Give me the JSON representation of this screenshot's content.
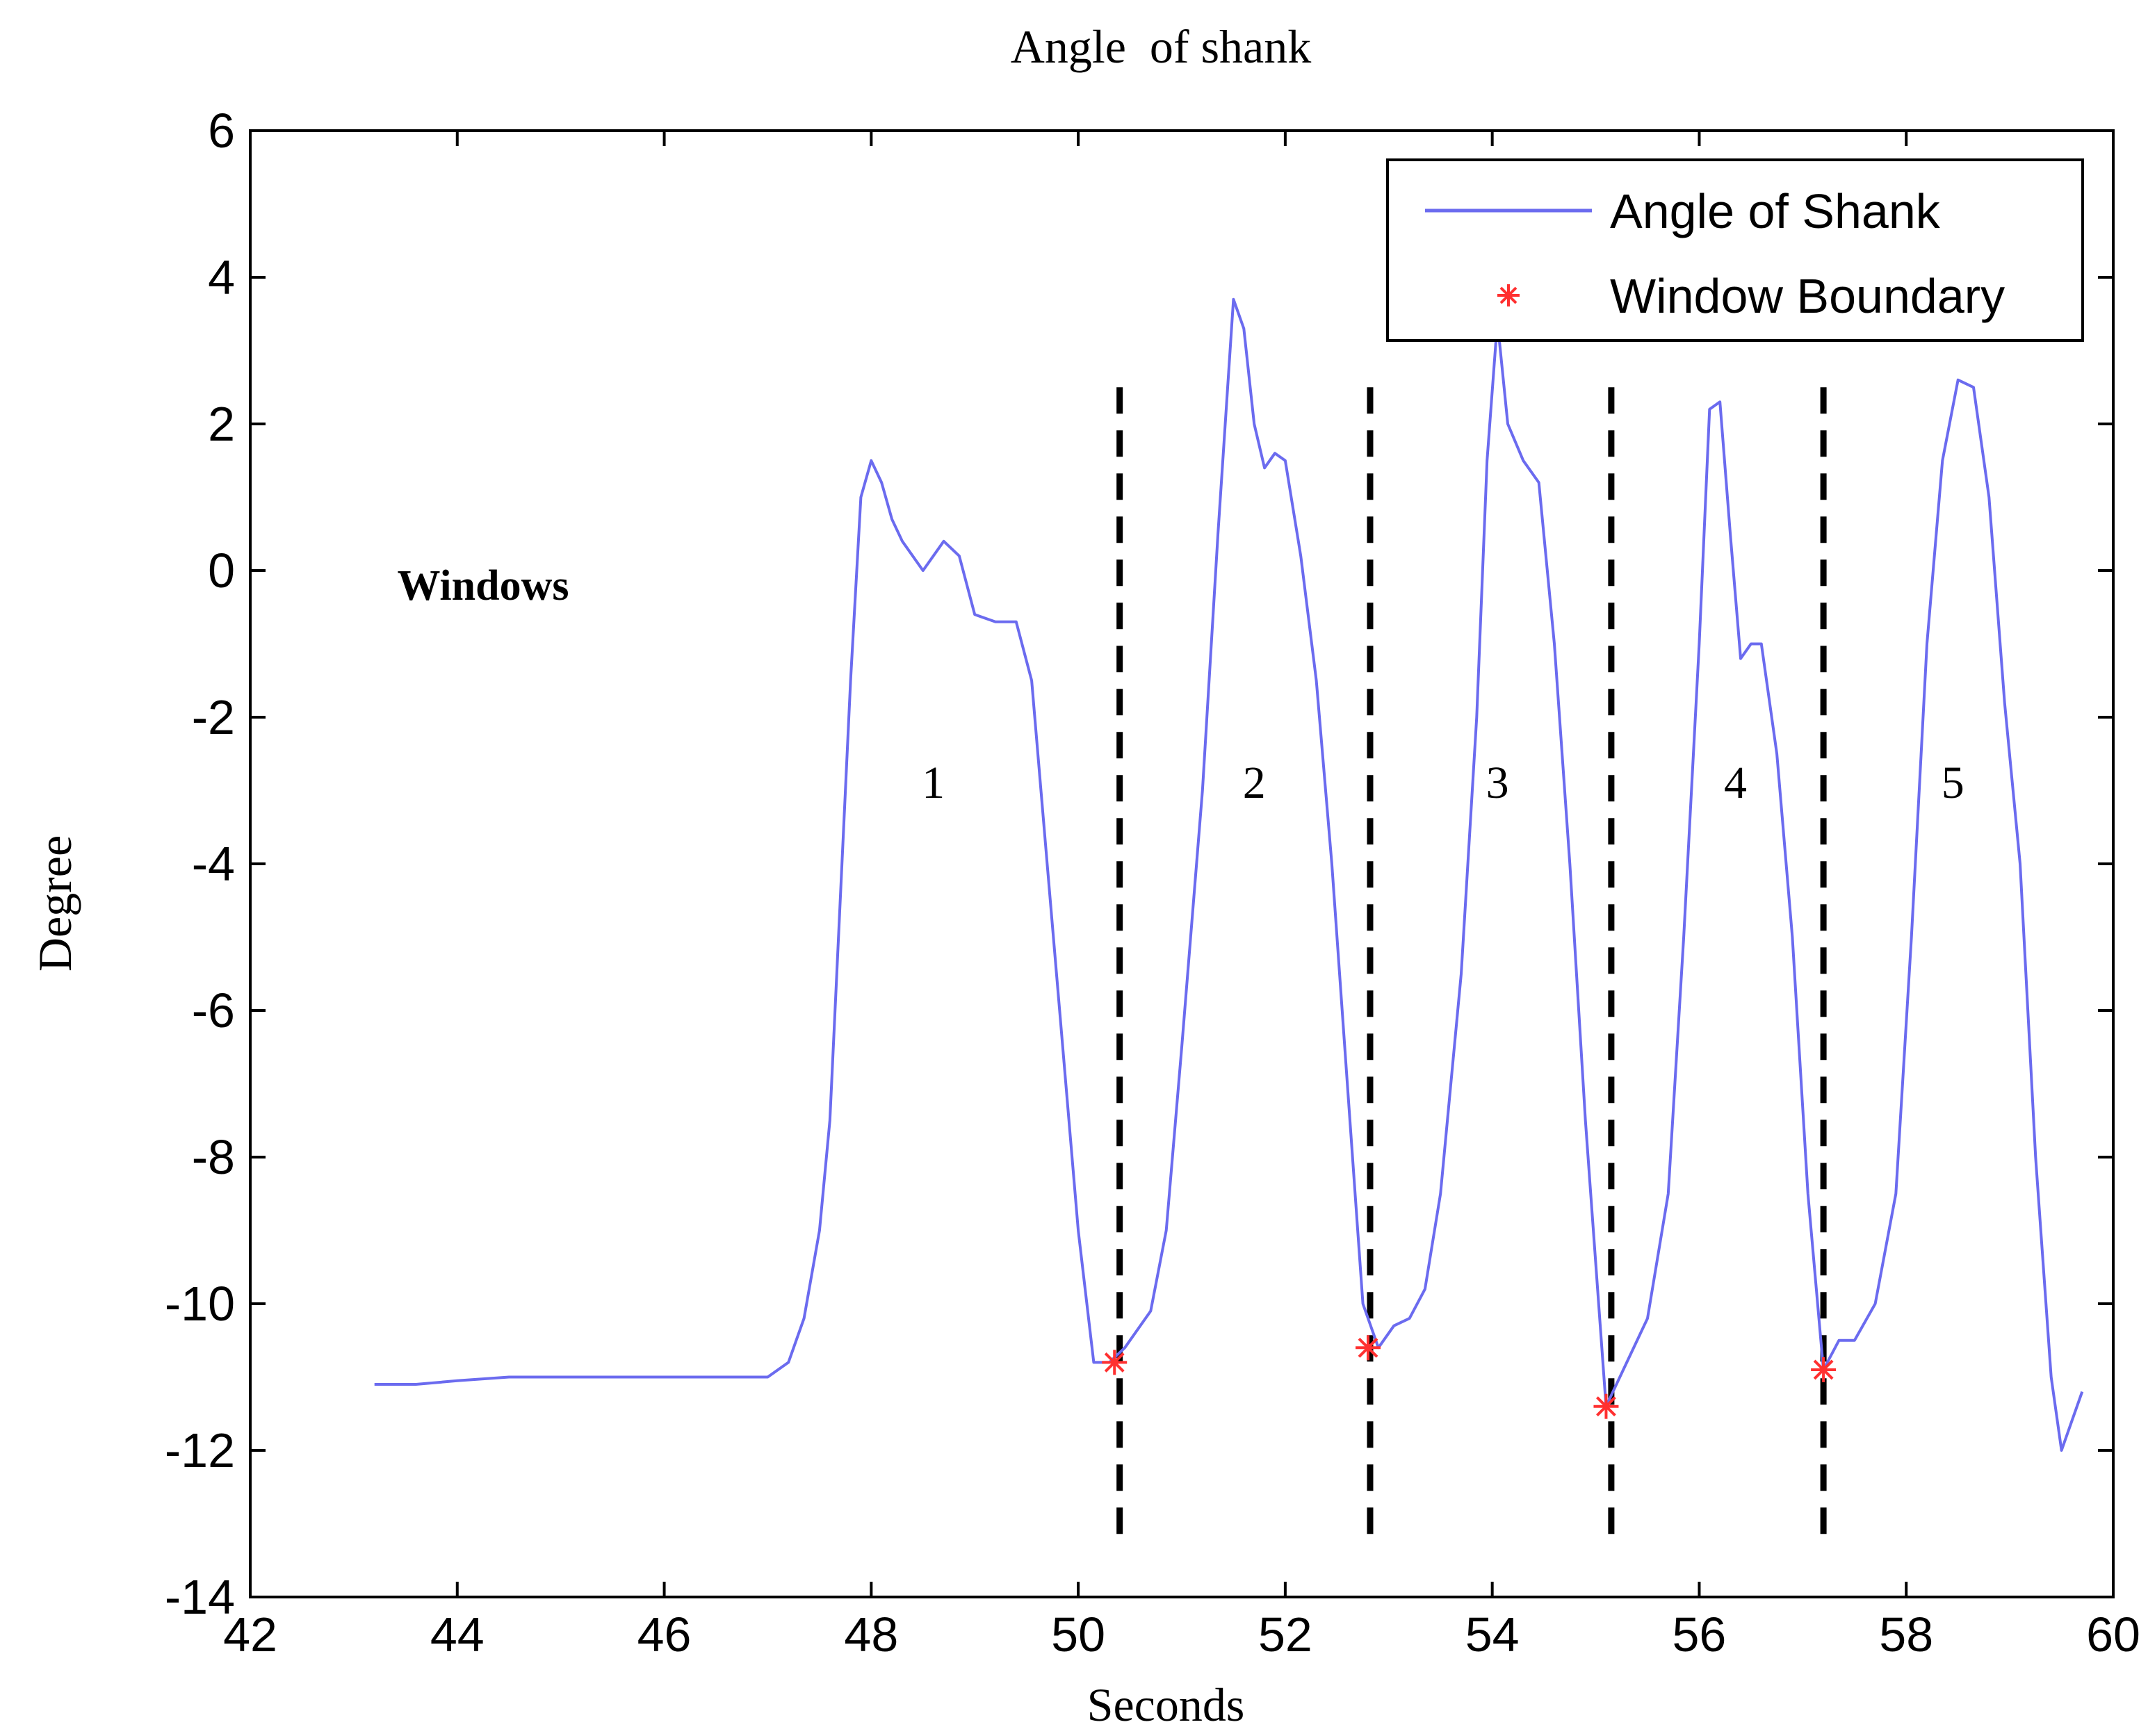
{
  "chart_data": {
    "type": "line",
    "title": "Angle  of shank",
    "xlabel": "Seconds",
    "ylabel": "Degree",
    "xlim": [
      42,
      60
    ],
    "ylim": [
      -14,
      6
    ],
    "xticks": [
      42,
      44,
      46,
      48,
      50,
      52,
      54,
      56,
      58,
      60
    ],
    "yticks": [
      -14,
      -12,
      -10,
      -8,
      -6,
      -4,
      -2,
      0,
      2,
      4,
      6
    ],
    "grid": false,
    "legend_position": "top-right",
    "series": [
      {
        "name": "Angle of Shank",
        "color": "#6b6bef",
        "x": [
          43.2,
          43.6,
          44.0,
          44.5,
          45.0,
          45.5,
          46.0,
          46.5,
          47.0,
          47.2,
          47.35,
          47.5,
          47.6,
          47.7,
          47.8,
          47.9,
          48.0,
          48.1,
          48.2,
          48.3,
          48.5,
          48.7,
          48.85,
          49.0,
          49.2,
          49.4,
          49.55,
          49.7,
          49.85,
          50.0,
          50.15,
          50.3,
          50.45,
          50.7,
          50.85,
          51.0,
          51.2,
          51.35,
          51.5,
          51.6,
          51.7,
          51.8,
          51.9,
          52.0,
          52.15,
          52.3,
          52.45,
          52.6,
          52.75,
          52.9,
          53.05,
          53.2,
          53.35,
          53.5,
          53.7,
          53.85,
          53.95,
          54.05,
          54.15,
          54.3,
          54.45,
          54.6,
          54.75,
          54.9,
          55.1,
          55.3,
          55.5,
          55.7,
          55.85,
          56.0,
          56.1,
          56.2,
          56.3,
          56.4,
          56.5,
          56.6,
          56.75,
          56.9,
          57.05,
          57.2,
          57.35,
          57.5,
          57.7,
          57.9,
          58.05,
          58.2,
          58.35,
          58.5,
          58.65,
          58.8,
          58.95,
          59.1,
          59.25,
          59.4,
          59.5,
          59.6,
          59.7
        ],
        "y": [
          -11.1,
          -11.1,
          -11.05,
          -11.0,
          -11.0,
          -11.0,
          -11.0,
          -11.0,
          -11.0,
          -10.8,
          -10.2,
          -9.0,
          -7.5,
          -4.5,
          -1.5,
          1.0,
          1.5,
          1.2,
          0.7,
          0.4,
          0.0,
          0.4,
          0.2,
          -0.6,
          -0.7,
          -0.7,
          -1.5,
          -4.0,
          -6.5,
          -9.0,
          -10.8,
          -10.8,
          -10.6,
          -10.1,
          -9.0,
          -6.5,
          -3.0,
          0.5,
          3.7,
          3.3,
          2.0,
          1.4,
          1.6,
          1.5,
          0.2,
          -1.5,
          -4.0,
          -7.0,
          -10.0,
          -10.6,
          -10.3,
          -10.2,
          -9.8,
          -8.5,
          -5.5,
          -2.0,
          1.5,
          3.4,
          2.0,
          1.5,
          1.2,
          -1.0,
          -4.0,
          -7.5,
          -11.4,
          -10.8,
          -10.2,
          -8.5,
          -5.0,
          -1.0,
          2.2,
          2.3,
          0.5,
          -1.2,
          -1.0,
          -1.0,
          -2.5,
          -5.0,
          -8.5,
          -10.9,
          -10.5,
          -10.5,
          -10.0,
          -8.5,
          -5.0,
          -1.0,
          1.5,
          2.6,
          2.5,
          1.0,
          -1.8,
          -4.0,
          -8.0,
          -11.0,
          -12.0,
          -11.6,
          -11.2
        ]
      },
      {
        "name": "Window Boundary",
        "color": "#ff3030",
        "marker": "*",
        "x": [
          50.35,
          52.8,
          55.1,
          57.2
        ],
        "y": [
          -10.8,
          -10.6,
          -11.4,
          -10.9
        ]
      }
    ],
    "annotations": {
      "section_label": "Windows",
      "window_numbers": [
        {
          "label": "1",
          "x": 48.6,
          "y": -3.1
        },
        {
          "label": "2",
          "x": 51.7,
          "y": -3.1
        },
        {
          "label": "3",
          "x": 54.05,
          "y": -3.1
        },
        {
          "label": "4",
          "x": 56.35,
          "y": -3.1
        },
        {
          "label": "5",
          "x": 58.45,
          "y": -3.1
        }
      ],
      "window_dividers": [
        50.4,
        52.82,
        55.15,
        57.2
      ]
    }
  }
}
